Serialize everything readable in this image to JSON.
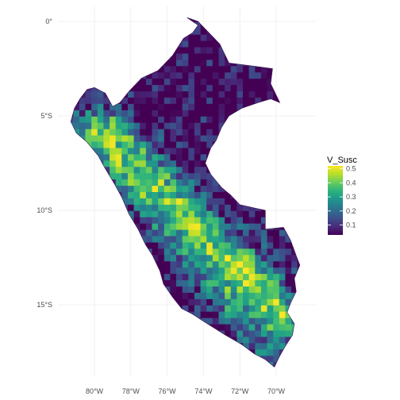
{
  "chart_data": {
    "type": "choropleth",
    "region": "Peru",
    "fill_variable": "V_Susc",
    "x_axis_ticks": [
      "80°W",
      "78°W",
      "76°W",
      "74°W",
      "72°W",
      "70°W"
    ],
    "y_axis_ticks": [
      "0°",
      "5°S",
      "10°S",
      "15°S"
    ],
    "x_tick_values": [
      -80,
      -78,
      -76,
      -74,
      -72,
      -70
    ],
    "y_tick_values": [
      0,
      -5,
      -10,
      -15
    ],
    "xlim": [
      -81.9,
      -67.6
    ],
    "ylim": [
      -18.9,
      1.0
    ],
    "grid": true,
    "legend": {
      "title": "V_Susc",
      "position": "right",
      "min": 0.03,
      "max": 0.52,
      "breaks": [
        0.1,
        0.2,
        0.3,
        0.4,
        0.5
      ],
      "break_labels": [
        "0.1",
        "0.2",
        "0.3",
        "0.4",
        "0.5"
      ],
      "colormap": "viridis",
      "colors": [
        "#440154",
        "#482878",
        "#3e4989",
        "#31688e",
        "#26828e",
        "#1f9e89",
        "#35b779",
        "#6ece58",
        "#b5de2b",
        "#fde725"
      ]
    }
  }
}
